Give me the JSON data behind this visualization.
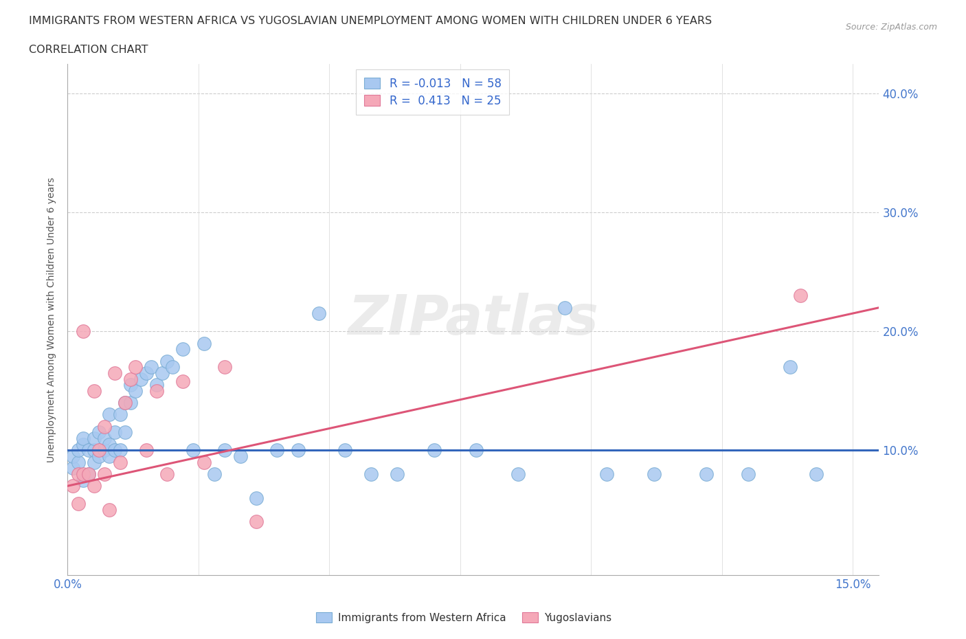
{
  "title_line1": "IMMIGRANTS FROM WESTERN AFRICA VS YUGOSLAVIAN UNEMPLOYMENT AMONG WOMEN WITH CHILDREN UNDER 6 YEARS",
  "title_line2": "CORRELATION CHART",
  "source_text": "Source: ZipAtlas.com",
  "ylabel": "Unemployment Among Women with Children Under 6 years",
  "xlim": [
    0.0,
    0.155
  ],
  "ylim": [
    -0.005,
    0.425
  ],
  "blue_color": "#a8c8f0",
  "blue_edge": "#7aadd4",
  "pink_color": "#f5a8b8",
  "pink_edge": "#e07898",
  "blue_line_color": "#3366bb",
  "pink_line_color": "#dd5577",
  "watermark": "ZIPatlas",
  "legend_R1_label": "R = -0.013   N = 58",
  "legend_R2_label": "R =  0.413   N = 25",
  "blue_scatter_x": [
    0.001,
    0.001,
    0.002,
    0.002,
    0.003,
    0.003,
    0.003,
    0.004,
    0.004,
    0.005,
    0.005,
    0.005,
    0.006,
    0.006,
    0.007,
    0.007,
    0.008,
    0.008,
    0.008,
    0.009,
    0.009,
    0.01,
    0.01,
    0.011,
    0.011,
    0.012,
    0.012,
    0.013,
    0.014,
    0.015,
    0.016,
    0.017,
    0.018,
    0.019,
    0.02,
    0.022,
    0.024,
    0.026,
    0.028,
    0.03,
    0.033,
    0.036,
    0.04,
    0.044,
    0.048,
    0.053,
    0.058,
    0.063,
    0.07,
    0.078,
    0.086,
    0.095,
    0.103,
    0.112,
    0.122,
    0.13,
    0.138,
    0.143
  ],
  "blue_scatter_y": [
    0.085,
    0.095,
    0.09,
    0.1,
    0.075,
    0.105,
    0.11,
    0.08,
    0.1,
    0.09,
    0.1,
    0.11,
    0.095,
    0.115,
    0.1,
    0.11,
    0.095,
    0.105,
    0.13,
    0.1,
    0.115,
    0.1,
    0.13,
    0.115,
    0.14,
    0.14,
    0.155,
    0.15,
    0.16,
    0.165,
    0.17,
    0.155,
    0.165,
    0.175,
    0.17,
    0.185,
    0.1,
    0.19,
    0.08,
    0.1,
    0.095,
    0.06,
    0.1,
    0.1,
    0.215,
    0.1,
    0.08,
    0.08,
    0.1,
    0.1,
    0.08,
    0.22,
    0.08,
    0.08,
    0.08,
    0.08,
    0.17,
    0.08
  ],
  "pink_scatter_x": [
    0.001,
    0.002,
    0.002,
    0.003,
    0.003,
    0.004,
    0.005,
    0.005,
    0.006,
    0.007,
    0.007,
    0.008,
    0.009,
    0.01,
    0.011,
    0.012,
    0.013,
    0.015,
    0.017,
    0.019,
    0.022,
    0.026,
    0.03,
    0.036,
    0.14
  ],
  "pink_scatter_y": [
    0.07,
    0.08,
    0.055,
    0.08,
    0.2,
    0.08,
    0.15,
    0.07,
    0.1,
    0.12,
    0.08,
    0.05,
    0.165,
    0.09,
    0.14,
    0.16,
    0.17,
    0.1,
    0.15,
    0.08,
    0.158,
    0.09,
    0.17,
    0.04,
    0.23
  ],
  "blue_line_y0": 0.1,
  "blue_line_y1": 0.1,
  "pink_line_y0": 0.07,
  "pink_line_y1": 0.22
}
